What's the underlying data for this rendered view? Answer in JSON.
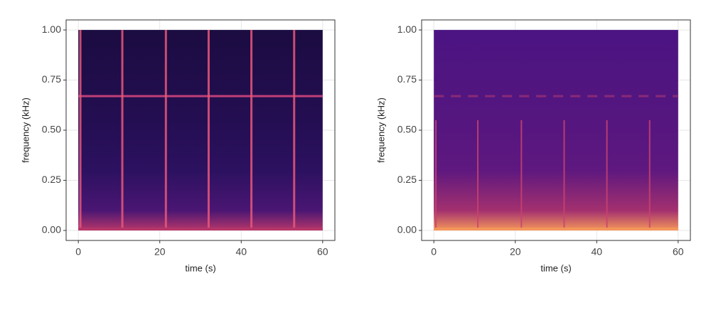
{
  "chart_data": [
    {
      "type": "spectrogram",
      "xlabel": "time (s)",
      "ylabel": "frequency (kHz)",
      "xlim": [
        -3,
        63
      ],
      "ylim": [
        -0.05,
        1.05
      ],
      "xticks": [
        0,
        20,
        40,
        60
      ],
      "yticks": [
        {
          "value": 0,
          "label": "0.00"
        },
        {
          "value": 0.25,
          "label": "0.25"
        },
        {
          "value": 0.5,
          "label": "0.50"
        },
        {
          "value": 0.75,
          "label": "0.75"
        },
        {
          "value": 1,
          "label": "1.00"
        }
      ],
      "grid": true,
      "gradient": [
        "#1b0c41",
        "#240e52",
        "#2c1160",
        "#4a1673",
        "#b5366a"
      ],
      "call_times": [
        0.5,
        10.8,
        21.5,
        32,
        42.5,
        53
      ],
      "call_top_khz": 1,
      "call_color": "#e8577a",
      "tone_khz": 0.67,
      "tone_color": "#c03f77"
    },
    {
      "type": "spectrogram",
      "xlabel": "time (s)",
      "ylabel": "frequency (kHz)",
      "xlim": [
        -3,
        63
      ],
      "ylim": [
        -0.05,
        1.05
      ],
      "xticks": [
        0,
        20,
        40,
        60
      ],
      "yticks": [
        {
          "value": 0,
          "label": "0.00"
        },
        {
          "value": 0.25,
          "label": "0.25"
        },
        {
          "value": 0.5,
          "label": "0.50"
        },
        {
          "value": 0.75,
          "label": "0.75"
        },
        {
          "value": 1,
          "label": "1.00"
        }
      ],
      "grid": true,
      "gradient": [
        "#4b1482",
        "#55167f",
        "#5e187f",
        "#a3306f",
        "#f4955a"
      ],
      "call_times": [
        0.5,
        10.8,
        21.5,
        32,
        42.5,
        53
      ],
      "call_top_khz": 0.55,
      "call_color": "#c9426f",
      "tone_khz": 0.67,
      "tone_color": "#8a2a78"
    }
  ]
}
